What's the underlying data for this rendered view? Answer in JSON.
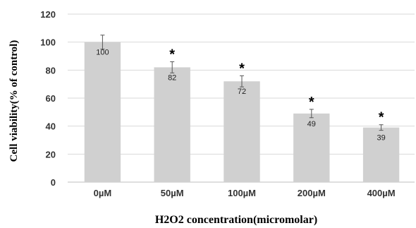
{
  "chart_data": {
    "type": "bar",
    "categories": [
      "0µM",
      "50µM",
      "100µM",
      "200µM",
      "400µM"
    ],
    "values": [
      100,
      82,
      72,
      49,
      39
    ],
    "value_labels": [
      "100",
      "82",
      "72",
      "49",
      "39"
    ],
    "error": [
      5,
      4,
      4,
      3,
      2
    ],
    "significance": [
      "",
      "*",
      "*",
      "*",
      "*"
    ],
    "xlabel": "H2O2 concentration(micromolar)",
    "ylabel": "Cell viability(% of control)",
    "ylim": [
      0,
      120
    ],
    "yticks": [
      0,
      20,
      40,
      60,
      80,
      100,
      120
    ],
    "ytick_labels": [
      "0",
      "20",
      "40",
      "60",
      "80",
      "100",
      "120"
    ],
    "grid": true,
    "bar_color": "#d0d0d0",
    "grid_color": "#d9d9d9"
  }
}
